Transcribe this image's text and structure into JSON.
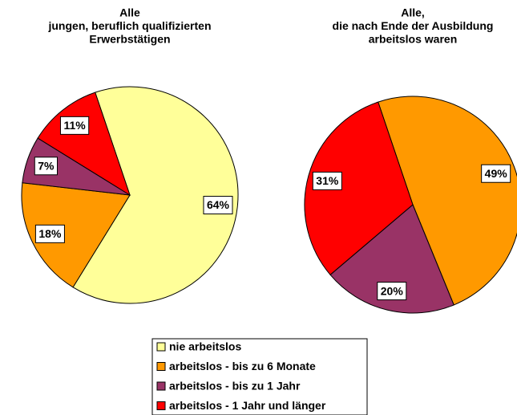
{
  "chart_data": [
    {
      "type": "pie",
      "title": [
        "Alle",
        "jungen, beruflich qualifizierten",
        "Erwerbstätigen"
      ],
      "values": [
        64,
        18,
        7,
        11
      ],
      "value_labels": [
        "64%",
        "18%",
        "7%",
        "11%"
      ],
      "colors": [
        "#ffff99",
        "#ff9900",
        "#993366",
        "#ff0000"
      ]
    },
    {
      "type": "pie",
      "title": [
        "Alle,",
        "die nach Ende der Ausbildung",
        "arbeitslos waren"
      ],
      "values": [
        49,
        20,
        31
      ],
      "value_labels": [
        "49%",
        "20%",
        "31%"
      ],
      "colors": [
        "#ff9900",
        "#993366",
        "#ff0000"
      ]
    }
  ],
  "legend": {
    "labels": [
      "nie arbeitslos",
      "arbeitslos - bis zu 6 Monate",
      "arbeitslos - bis zu 1 Jahr",
      "arbeitslos - 1 Jahr und länger"
    ],
    "colors": [
      "#ffff99",
      "#ff9900",
      "#993366",
      "#ff0000"
    ]
  }
}
